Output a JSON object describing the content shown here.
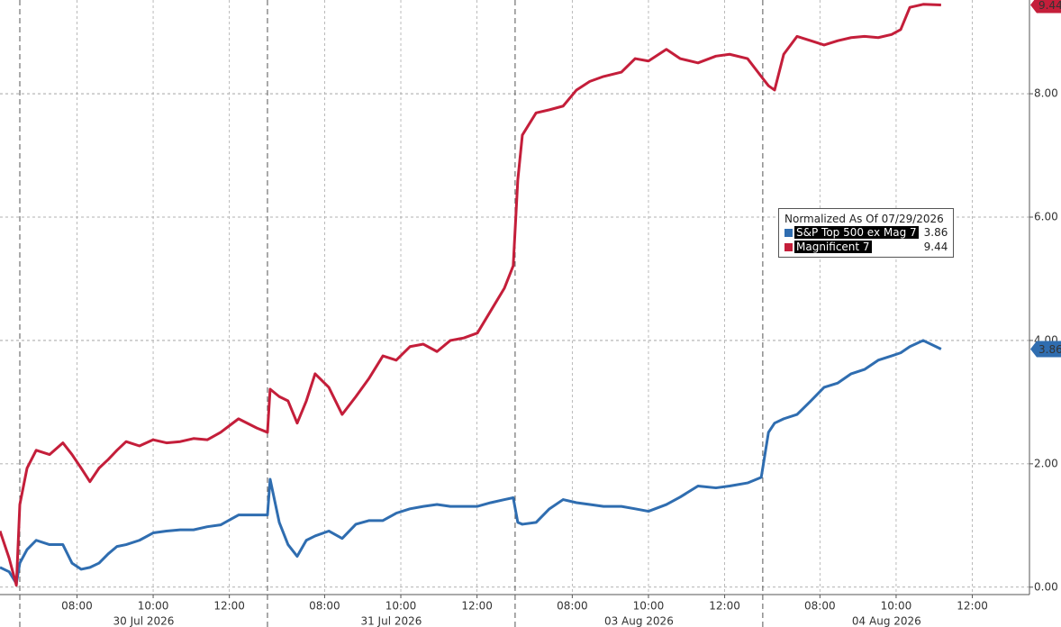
{
  "chart_data": {
    "type": "line",
    "legend_title": "Normalized As Of 07/29/2026",
    "legend_position": "center-right",
    "x": [
      -0.52,
      -0.28,
      -0.09,
      0,
      0.19,
      0.43,
      0.78,
      1.13,
      1.37,
      1.61,
      1.84,
      2.08,
      2.32,
      2.55,
      2.79,
      3.14,
      3.5,
      3.85,
      4.21,
      4.56,
      4.92,
      5.27,
      5.74,
      6.22,
      6.5,
      6.57,
      6.81,
      7.04,
      7.28,
      7.52,
      7.75,
      8.11,
      8.46,
      8.82,
      9.17,
      9.53,
      9.88,
      10.24,
      10.59,
      10.95,
      11.3,
      11.65,
      12.01,
      12.36,
      12.72,
      12.95,
      13.07,
      13.19,
      13.55,
      13.9,
      14.26,
      14.61,
      14.96,
      15.32,
      15.79,
      16.15,
      16.5,
      16.97,
      17.33,
      17.8,
      18.27,
      18.63,
      19.1,
      19.46,
      19.65,
      19.81,
      20.05,
      20.4,
      20.76,
      21.11,
      21.47,
      21.82,
      22.17,
      22.53,
      22.88,
      23.12,
      23.36,
      23.71,
      24.18
    ],
    "series": [
      {
        "name": "S&P Top 500 ex Mag 7",
        "color": "#2f6db0",
        "values": [
          0.32,
          0.25,
          0.06,
          0.39,
          0.61,
          0.76,
          0.69,
          0.69,
          0.39,
          0.29,
          0.32,
          0.39,
          0.54,
          0.66,
          0.69,
          0.76,
          0.88,
          0.91,
          0.93,
          0.93,
          0.98,
          1.01,
          1.17,
          1.17,
          1.17,
          1.75,
          1.05,
          0.69,
          0.5,
          0.76,
          0.83,
          0.91,
          0.79,
          1.02,
          1.08,
          1.08,
          1.2,
          1.27,
          1.31,
          1.34,
          1.31,
          1.31,
          1.31,
          1.37,
          1.42,
          1.45,
          1.05,
          1.02,
          1.05,
          1.27,
          1.42,
          1.37,
          1.34,
          1.31,
          1.31,
          1.27,
          1.23,
          1.34,
          1.46,
          1.64,
          1.61,
          1.64,
          1.69,
          1.78,
          2.51,
          2.66,
          2.73,
          2.8,
          3.02,
          3.24,
          3.31,
          3.46,
          3.53,
          3.68,
          3.75,
          3.8,
          3.9,
          4.0,
          3.86
        ]
      },
      {
        "name": "Magnificent 7",
        "color": "#c41e3a",
        "values": [
          0.91,
          0.47,
          0.03,
          1.34,
          1.93,
          2.22,
          2.15,
          2.34,
          2.15,
          1.93,
          1.71,
          1.93,
          2.07,
          2.22,
          2.36,
          2.29,
          2.39,
          2.34,
          2.36,
          2.41,
          2.39,
          2.51,
          2.73,
          2.58,
          2.51,
          3.21,
          3.09,
          3.02,
          2.66,
          3.02,
          3.46,
          3.24,
          2.8,
          3.09,
          3.39,
          3.75,
          3.68,
          3.9,
          3.94,
          3.82,
          4.0,
          4.04,
          4.12,
          4.48,
          4.85,
          5.21,
          6.6,
          7.33,
          7.69,
          7.74,
          7.8,
          8.06,
          8.2,
          8.28,
          8.35,
          8.57,
          8.53,
          8.72,
          8.57,
          8.5,
          8.61,
          8.64,
          8.57,
          8.28,
          8.13,
          8.06,
          8.64,
          8.93,
          8.86,
          8.79,
          8.86,
          8.91,
          8.93,
          8.91,
          8.96,
          9.04,
          9.4,
          9.45,
          9.44
        ]
      }
    ],
    "xlim": [
      -0.52,
      26.5
    ],
    "xticks": [
      {
        "value": 1.5,
        "label": "08:00"
      },
      {
        "value": 3.5,
        "label": "10:00"
      },
      {
        "value": 5.5,
        "label": "12:00"
      },
      {
        "value": 8,
        "label": "08:00"
      },
      {
        "value": 10,
        "label": "10:00"
      },
      {
        "value": 12,
        "label": "12:00"
      },
      {
        "value": 14.5,
        "label": "08:00"
      },
      {
        "value": 16.5,
        "label": "10:00"
      },
      {
        "value": 18.5,
        "label": "12:00"
      },
      {
        "value": 21,
        "label": "08:00"
      },
      {
        "value": 23,
        "label": "10:00"
      },
      {
        "value": 25,
        "label": "12:00"
      }
    ],
    "date_ticks": [
      {
        "value": 3.25,
        "label": "30 Jul 2026"
      },
      {
        "value": 9.75,
        "label": "31 Jul 2026"
      },
      {
        "value": 16.25,
        "label": "03 Aug 2026"
      },
      {
        "value": 22.75,
        "label": "04 Aug 2026"
      }
    ],
    "session_breaks": [
      0,
      6.5,
      13,
      19.5
    ],
    "ylim": [
      -0.12,
      9.52
    ],
    "yticks": [
      {
        "value": 0,
        "label": "0.00"
      },
      {
        "value": 2,
        "label": "2.00"
      },
      {
        "value": 4,
        "label": "4.00"
      },
      {
        "value": 6,
        "label": "6.00"
      },
      {
        "value": 8,
        "label": "8.00"
      }
    ],
    "grid": true
  }
}
